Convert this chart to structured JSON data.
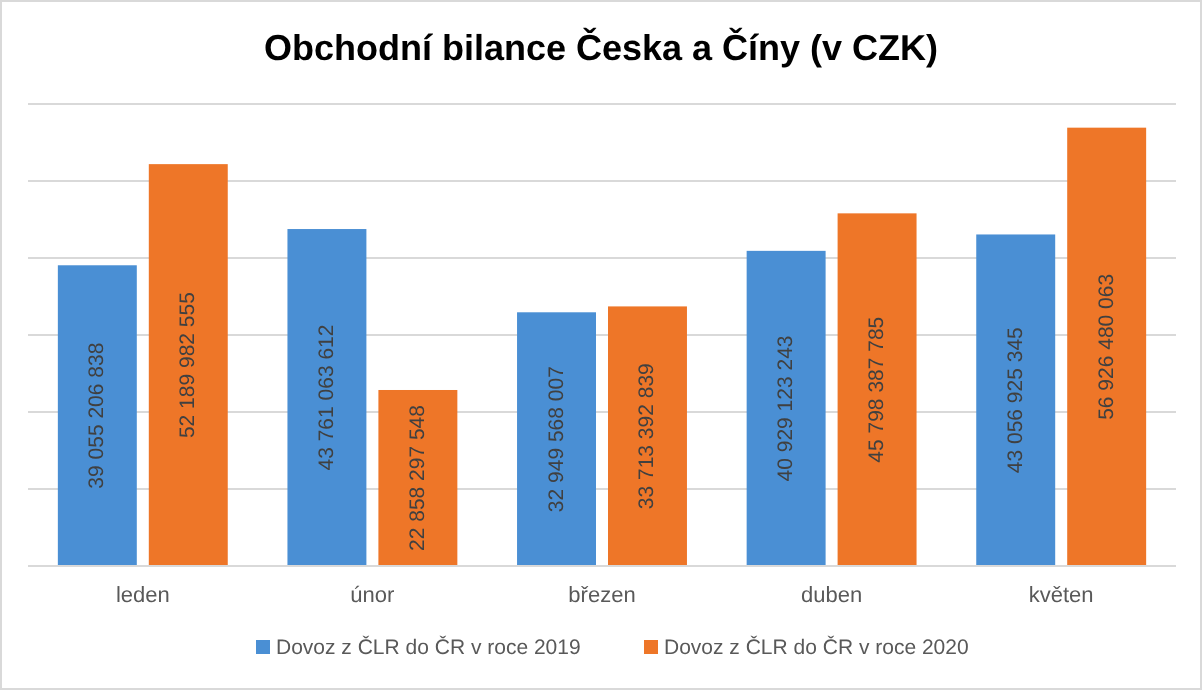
{
  "chart_data": {
    "type": "bar",
    "title": "Obchodní bilance Česka a Číny (v CZK)",
    "categories": [
      "leden",
      "únor",
      "březen",
      "duben",
      "květen"
    ],
    "series": [
      {
        "name": "Dovoz z ČLR do ČR v roce 2019",
        "color": "#4a8fd4",
        "values": [
          39055206838,
          43761063612,
          32949568007,
          40929123243,
          43056925345
        ],
        "value_labels": [
          "39 055 206 838",
          "43 761 063 612",
          "32 949 568 007",
          "40 929 123 243",
          "43 056 925 345"
        ]
      },
      {
        "name": "Dovoz z ČLR do ČR v roce 2020",
        "color": "#ee7628",
        "values": [
          52189982555,
          22858297548,
          33713392839,
          45798387785,
          56926480063
        ],
        "value_labels": [
          "52 189 982 555",
          "22 858 297 548",
          "33 713 392 839",
          "45 798 387 785",
          "56 926 480 063"
        ]
      }
    ],
    "ylim": [
      0,
      60000000000
    ],
    "yticks": [
      {
        "value": 0,
        "label": null
      },
      {
        "value": 10000000000,
        "label": null
      },
      {
        "value": 20000000000,
        "label": null
      },
      {
        "value": 30000000000,
        "label": null
      },
      {
        "value": 40000000000,
        "label": null
      },
      {
        "value": 50000000000,
        "label": null
      },
      {
        "value": 60000000000,
        "label": null
      }
    ],
    "tick_labels": "x",
    "grid": "y",
    "legend": "bottom"
  }
}
